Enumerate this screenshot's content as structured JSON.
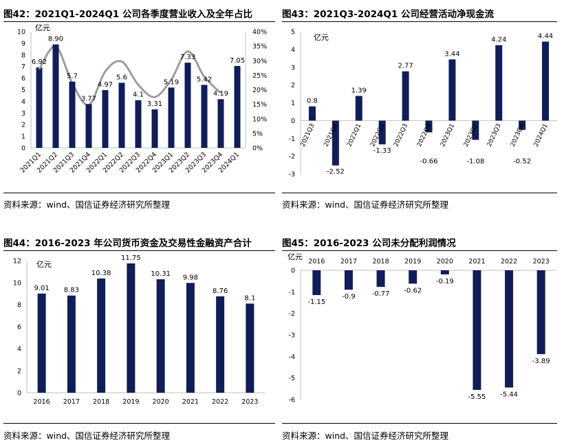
{
  "colors": {
    "bar": "#0f1e5a",
    "line": "#9c9c9c",
    "text": "#000000"
  },
  "charts": [
    {
      "title": "图42：2021Q1-2024Q1 公司各季度营业收入及全年占比",
      "source": "资料来源：wind、国信证券经济研究所整理",
      "chart_data": {
        "type": "bar",
        "unit_label": "亿元",
        "categories": [
          "2021Q1",
          "2021Q2",
          "2021Q3",
          "2021Q4",
          "2022Q1",
          "2022Q2",
          "2022Q3",
          "2022Q4",
          "2023Q1",
          "2023Q2",
          "2023Q3",
          "2023Q4",
          "2024Q1"
        ],
        "values": [
          6.92,
          8.9,
          5.7,
          3.77,
          4.97,
          5.6,
          4.1,
          3.31,
          5.19,
          7.33,
          5.42,
          4.19,
          7.05
        ],
        "data_labels": [
          "6.92",
          "8.90",
          "5.7",
          "3.77",
          "4.97",
          "5.6",
          "4.1",
          "3.31",
          "5.19",
          "7.33",
          "5.42",
          "4.19",
          "7.05"
        ],
        "ylim": [
          0,
          10
        ],
        "yticks": [
          "0",
          "1",
          "2",
          "3",
          "4",
          "5",
          "6",
          "7",
          "8",
          "9",
          "10"
        ],
        "secondary_axis": {
          "ylim": [
            0,
            40
          ],
          "ticks": [
            "0%",
            "5%",
            "10%",
            "15%",
            "20%",
            "25%",
            "30%",
            "35%",
            "40%"
          ],
          "series_type": "smooth-line",
          "values": [
            27.1,
            34.9,
            22.3,
            14.8,
            26.3,
            29.7,
            21.7,
            17.5,
            23.5,
            33.2,
            24.5,
            18.8,
            null
          ]
        }
      }
    },
    {
      "title": "图43：2021Q3-2024Q1 公司经营活动净现金流",
      "source": "资料来源：wind、国信证券经济研究所整理",
      "chart_data": {
        "type": "bar",
        "unit_label": "亿元",
        "categories": [
          "2021Q3",
          "2021Q4",
          "2022Q1",
          "2022Q2",
          "2022Q3",
          "2022Q4",
          "2023Q1",
          "2023Q2",
          "2023Q3",
          "2023Q4",
          "2024Q1"
        ],
        "values": [
          0.8,
          -2.52,
          1.39,
          -1.33,
          2.77,
          -0.66,
          3.44,
          -1.08,
          4.24,
          -0.52,
          4.44
        ],
        "data_labels": [
          "0.8",
          "-2.52",
          "1.39",
          "-1.33",
          "2.77",
          "-0.66",
          "3.44",
          "-1.08",
          "4.24",
          "-0.52",
          "4.44"
        ],
        "ylim": [
          -3,
          5
        ],
        "yticks": [
          "-3",
          "-2",
          "-1",
          "0",
          "1",
          "2",
          "3",
          "4",
          "5"
        ]
      }
    },
    {
      "title": "图44：2016-2023 年公司货币资金及交易性金融资产合计",
      "source": "资料来源：wind、国信证券经济研究所整理",
      "chart_data": {
        "type": "bar",
        "unit_label": "亿元",
        "categories": [
          "2016",
          "2017",
          "2018",
          "2019",
          "2020",
          "2021",
          "2022",
          "2023"
        ],
        "values": [
          9.01,
          8.83,
          10.38,
          11.75,
          10.31,
          9.98,
          8.76,
          8.1
        ],
        "data_labels": [
          "9.01",
          "8.83",
          "10.38",
          "11.75",
          "10.31",
          "9.98",
          "8.76",
          "8.1"
        ],
        "ylim": [
          0,
          12
        ],
        "yticks": [
          "0",
          "2",
          "4",
          "6",
          "8",
          "10",
          "12"
        ]
      }
    },
    {
      "title": "图45：2016-2023 公司未分配利润情况",
      "source": "资料来源：wind、国信证券经济研究所整理",
      "chart_data": {
        "type": "bar",
        "unit_label": "亿元",
        "categories": [
          "2016",
          "2017",
          "2018",
          "2019",
          "2020",
          "2021",
          "2022",
          "2023"
        ],
        "values": [
          -1.15,
          -0.9,
          -0.77,
          -0.62,
          -0.19,
          -5.55,
          -5.44,
          -3.89
        ],
        "data_labels": [
          "-1.15",
          "-0.9",
          "-0.77",
          "-0.62",
          "-0.19",
          "-5.55",
          "-5.44",
          "-3.89"
        ],
        "ylim": [
          -6,
          0
        ],
        "yticks": [
          "-6",
          "-5",
          "-4",
          "-3",
          "-2",
          "-1",
          "0"
        ]
      }
    }
  ]
}
